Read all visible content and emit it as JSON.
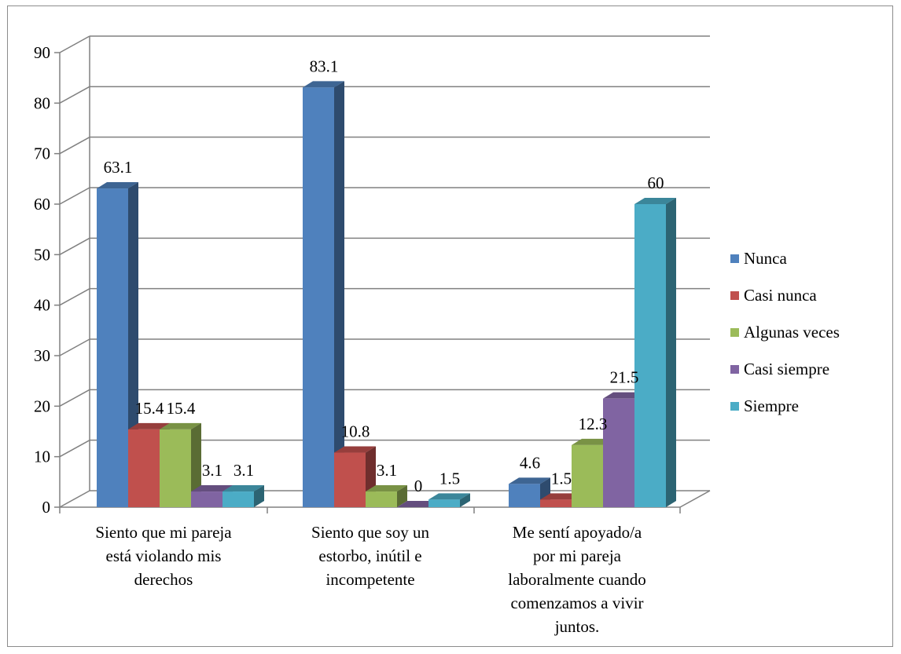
{
  "chart_data": {
    "type": "bar",
    "style": "3d-clustered-column",
    "title": "",
    "xlabel": "",
    "ylabel": "",
    "ylim": [
      0,
      90
    ],
    "yticks": [
      0,
      10,
      20,
      30,
      40,
      50,
      60,
      70,
      80,
      90
    ],
    "grid": true,
    "legend_position": "right",
    "categories": [
      [
        "Siento que mi pareja",
        "está violando mis",
        "derechos"
      ],
      [
        "Siento que soy un",
        "estorbo, inútil e",
        "incompetente"
      ],
      [
        "Me sentí apoyado/a",
        "por mi pareja",
        "laboralmente cuando",
        "comenzamos a vivir",
        "juntos."
      ]
    ],
    "series": [
      {
        "name": "Nunca",
        "color": "#4F81BD",
        "values": [
          63.1,
          83.1,
          4.6
        ]
      },
      {
        "name": "Casi nunca",
        "color": "#C0504D",
        "values": [
          15.4,
          10.8,
          1.5
        ]
      },
      {
        "name": "Algunas veces",
        "color": "#9BBB59",
        "values": [
          15.4,
          3.1,
          12.3
        ]
      },
      {
        "name": "Casi siempre",
        "color": "#8064A2",
        "values": [
          3.1,
          0,
          21.5
        ]
      },
      {
        "name": "Siempre",
        "color": "#4BACC6",
        "values": [
          3.1,
          1.5,
          60
        ]
      }
    ]
  }
}
